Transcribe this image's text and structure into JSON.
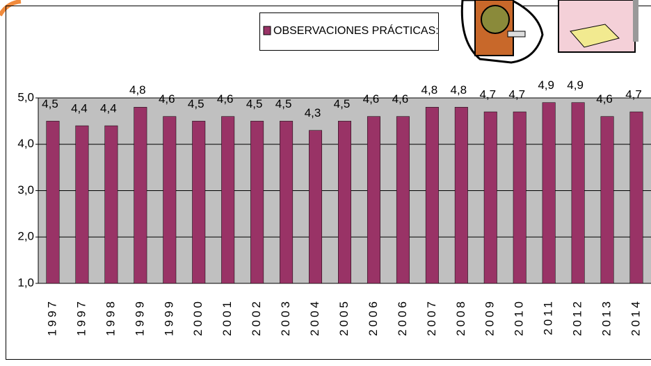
{
  "chart_data": {
    "type": "bar",
    "legend": "OBSERVACIONES PRÁCTICAS:",
    "categories": [
      "1997",
      "1997",
      "1998",
      "1999",
      "1999",
      "2000",
      "2001",
      "2002",
      "2003",
      "2004",
      "2005",
      "2006",
      "2006",
      "2007",
      "2008",
      "2009",
      "2010",
      "2011",
      "2012",
      "2013",
      "2014"
    ],
    "values": [
      4.5,
      4.4,
      4.4,
      4.8,
      4.6,
      4.5,
      4.6,
      4.5,
      4.5,
      4.3,
      4.5,
      4.6,
      4.6,
      4.8,
      4.8,
      4.7,
      4.7,
      4.9,
      4.9,
      4.6,
      4.7
    ],
    "value_labels": [
      "4,5",
      "4,4",
      "4,4",
      "4,8",
      "4,6",
      "4,5",
      "4,6",
      "4,5",
      "4,5",
      "4,3",
      "4,5",
      "4,6",
      "4,6",
      "4,8",
      "4,8",
      "4,7",
      "4,7",
      "4,9",
      "4,9",
      "4,6",
      "4,7"
    ],
    "color": "#993366",
    "ylim": [
      1,
      5
    ],
    "yticks": [
      {
        "value": 1,
        "label": "1,0"
      },
      {
        "value": 2,
        "label": "2,0"
      },
      {
        "value": 3,
        "label": "3,0"
      },
      {
        "value": 4,
        "label": "4,0"
      },
      {
        "value": 5,
        "label": "5,0"
      }
    ],
    "grid": true
  }
}
